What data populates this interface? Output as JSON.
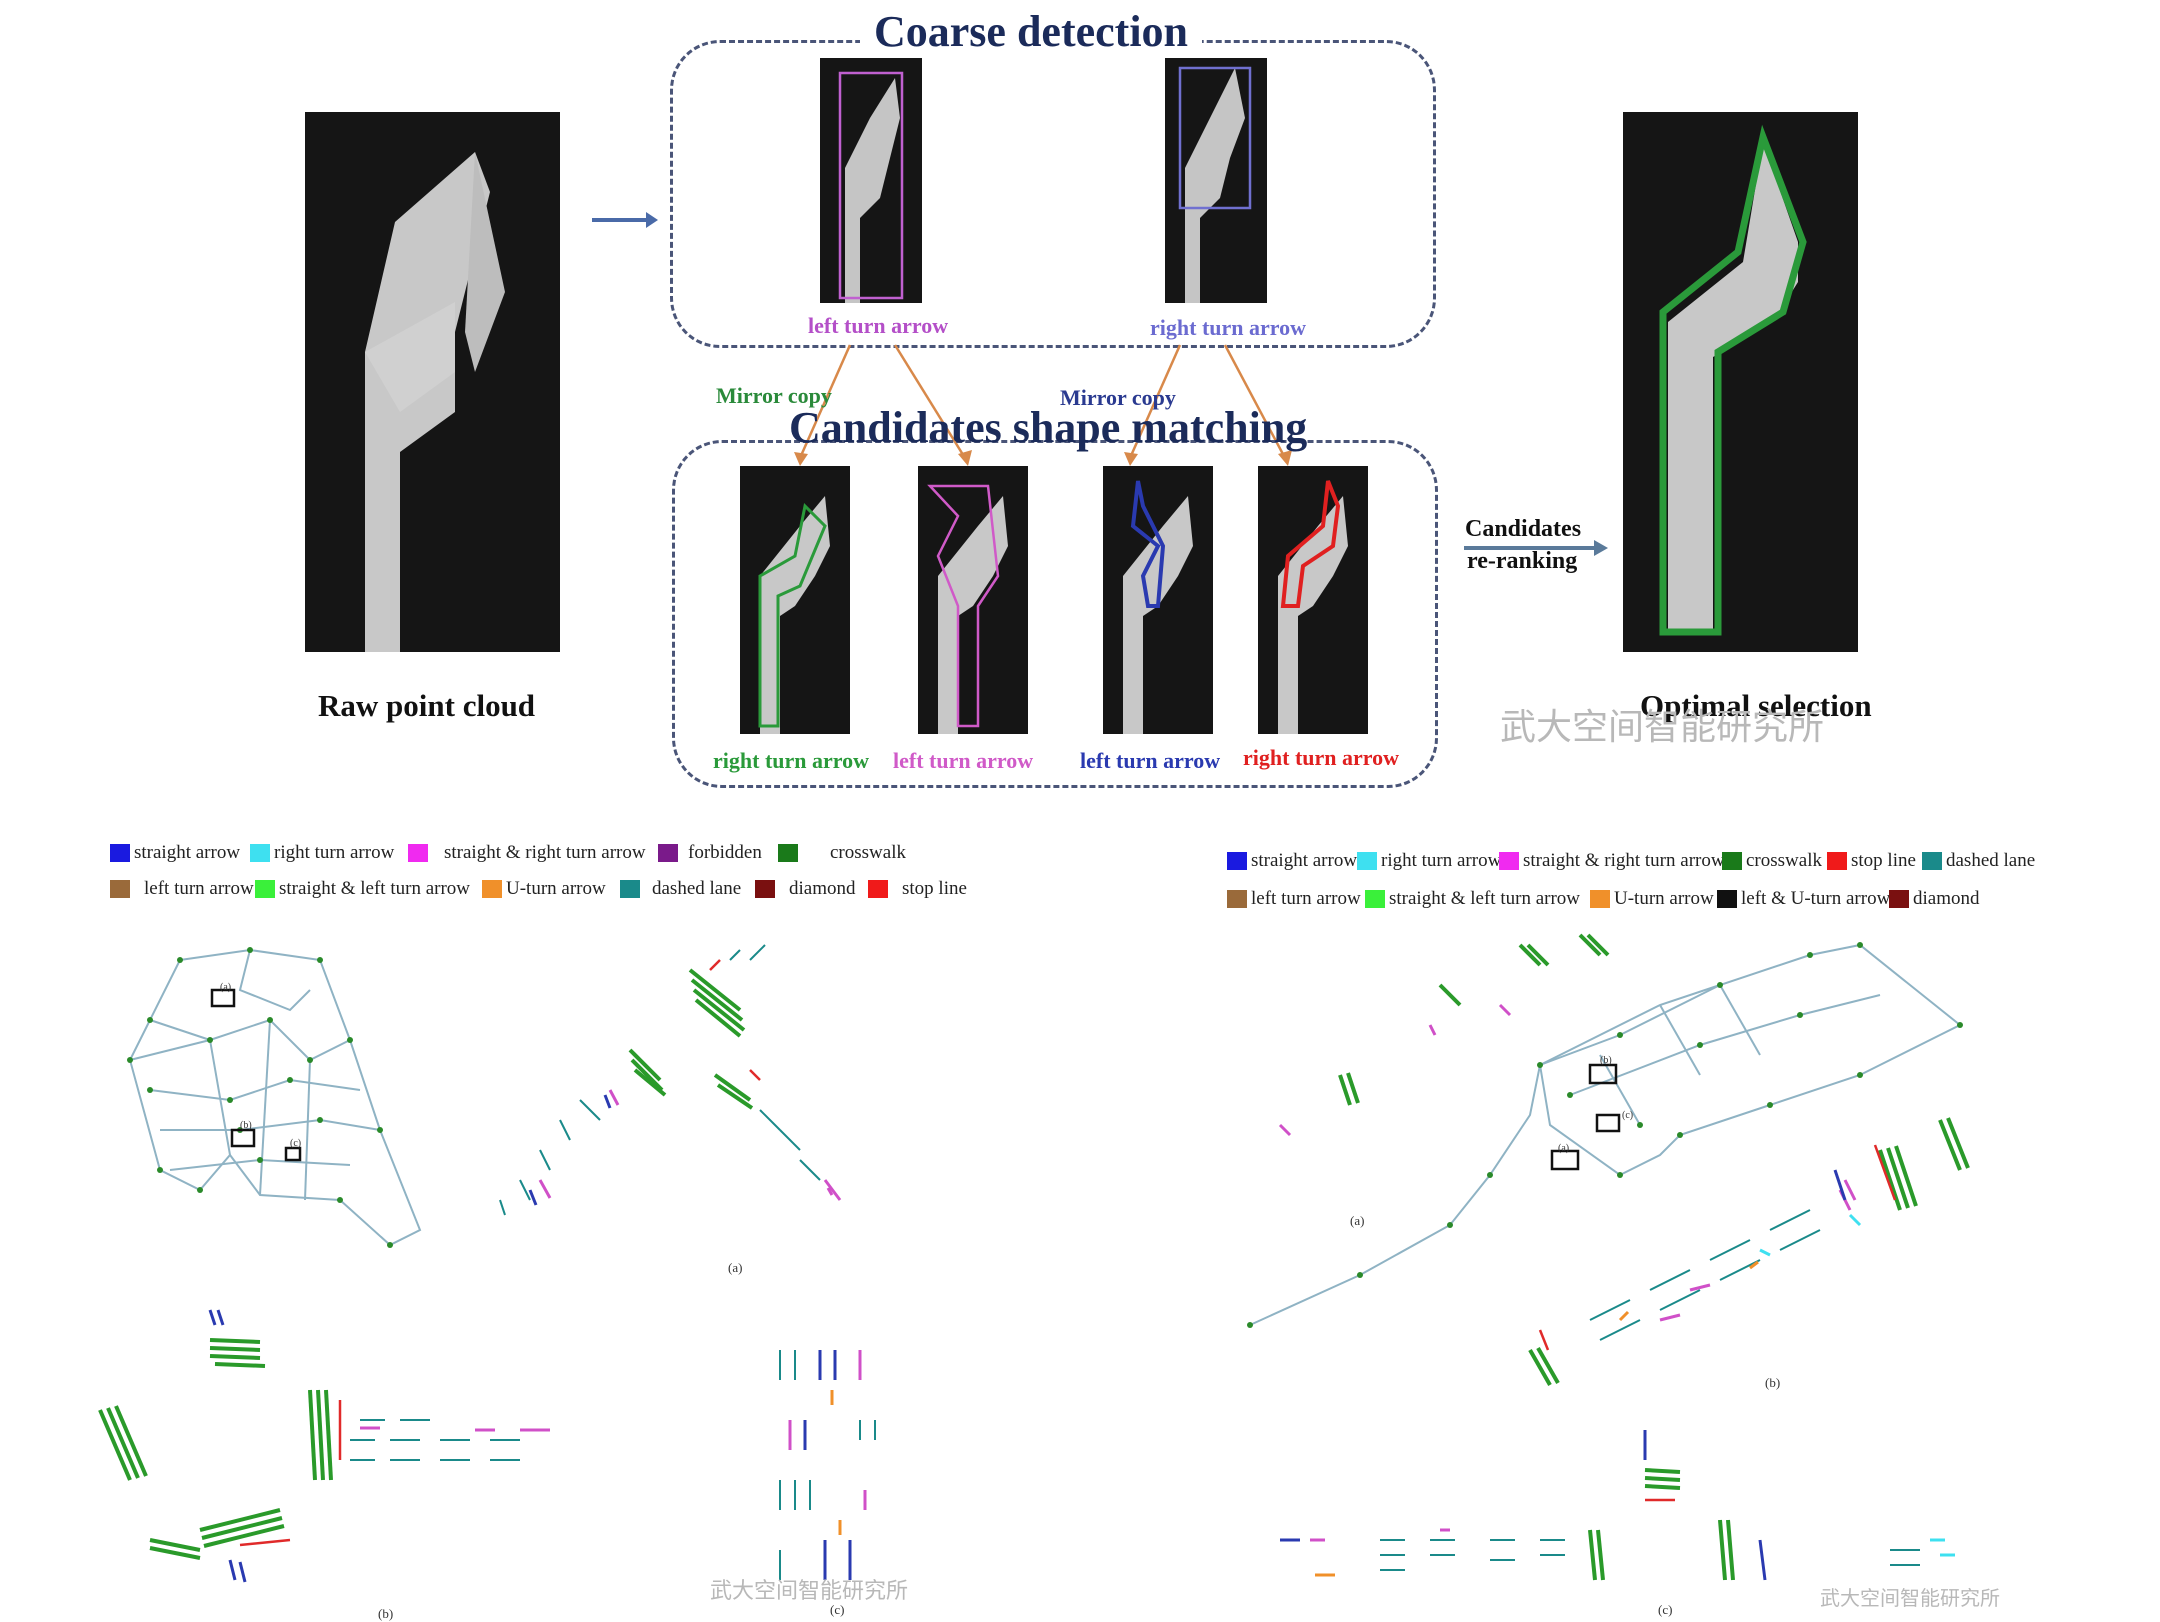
{
  "top": {
    "coarse_title": "Coarse detection",
    "candidates_title": "Candidates shape matching",
    "raw_label": "Raw point cloud",
    "optimal_label": "Optimal selection",
    "reranking_label_1": "Candidates",
    "reranking_label_2": "re-ranking",
    "mirror_copy_1": "Mirror copy",
    "mirror_copy_2": "Mirror copy",
    "coarse_labels": [
      "left turn arrow",
      "right turn arrow"
    ],
    "candidate_labels": [
      "right turn arrow",
      "left turn arrow",
      "left turn arrow",
      "right turn arrow"
    ],
    "colors": {
      "coarse_left": "#b44fc8",
      "coarse_right": "#6b6bd0",
      "cand_green": "#2a9a3a",
      "cand_pink": "#d05ac8",
      "cand_blue": "#2a3ab0",
      "cand_red": "#e02020",
      "mirror_green": "#2a8a3a",
      "mirror_blue": "#2a3a90",
      "orange_arrow": "#d8894a",
      "navy_arrow": "#4a6aa8"
    }
  },
  "legend_left": {
    "items": [
      {
        "label": "straight arrow",
        "color": "#1a1ae0"
      },
      {
        "label": "right turn arrow",
        "color": "#3ee0f0"
      },
      {
        "label": "straight  & right turn arrow",
        "color": "#f02af0"
      },
      {
        "label": "forbidden",
        "color": "#7a1a8a"
      },
      {
        "label": "crosswalk",
        "color": "#1a7a1a"
      },
      {
        "label": "left turn arrow",
        "color": "#9a6a3a"
      },
      {
        "label": "straight & left turn arrow",
        "color": "#3af03a"
      },
      {
        "label": "U-turn arrow",
        "color": "#f0902a"
      },
      {
        "label": "dashed lane",
        "color": "#1a8a8a"
      },
      {
        "label": "diamond",
        "color": "#7a1010"
      },
      {
        "label": "stop line",
        "color": "#f01a1a"
      }
    ]
  },
  "legend_right": {
    "items": [
      {
        "label": "straight arrow",
        "color": "#1a1ae0"
      },
      {
        "label": "right turn arrow",
        "color": "#3ee0f0"
      },
      {
        "label": "straight & right turn arrow",
        "color": "#f02af0"
      },
      {
        "label": "crosswalk",
        "color": "#1a7a1a"
      },
      {
        "label": "stop line",
        "color": "#f01a1a"
      },
      {
        "label": "dashed lane",
        "color": "#1a8a8a"
      },
      {
        "label": "left turn arrow",
        "color": "#9a6a3a"
      },
      {
        "label": "straight & left turn arrow",
        "color": "#3af03a"
      },
      {
        "label": "U-turn arrow",
        "color": "#f0902a"
      },
      {
        "label": "left & U-turn arrow",
        "color": "#111111"
      },
      {
        "label": "diamond",
        "color": "#7a1010"
      }
    ]
  },
  "left_figure": {
    "sub_a": "(a)",
    "sub_b": "(b)",
    "sub_c": "(c)",
    "box_a": "(a)",
    "box_b": "(b)",
    "box_c": "(c)"
  },
  "right_figure": {
    "sub_a": "(a)",
    "sub_b": "(b)",
    "sub_c": "(c)",
    "box_a": "(a)",
    "box_b": "(b)",
    "box_c": "(c)"
  },
  "watermarks": {
    "top": "武大空间智能研究所",
    "bottom_left": "武大空间智能研究所",
    "bottom_right": "武大空间智能研究所"
  }
}
